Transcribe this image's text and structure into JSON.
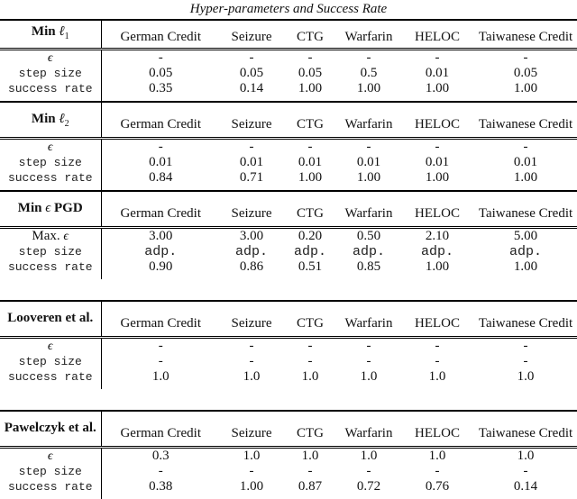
{
  "title": "Hyper-parameters and Success Rate",
  "columns": [
    "German Credit",
    "Seizure",
    "CTG",
    "Warfarin",
    "HELOC",
    "Taiwanese Credit"
  ],
  "sections": [
    {
      "name_prefix": "Min ",
      "name_math": "ℓ",
      "name_sub": "1",
      "name_suffix": "",
      "rows": [
        {
          "label_prefix": "",
          "label_math": "ϵ",
          "label_mono": "",
          "values": [
            "-",
            "-",
            "-",
            "-",
            "-",
            "-"
          ]
        },
        {
          "label_prefix": "",
          "label_math": "",
          "label_mono": "step size",
          "values": [
            "0.05",
            "0.05",
            "0.05",
            "0.5",
            "0.01",
            "0.05"
          ]
        },
        {
          "label_prefix": "",
          "label_math": "",
          "label_mono": "success rate",
          "values": [
            "0.35",
            "0.14",
            "1.00",
            "1.00",
            "1.00",
            "1.00"
          ]
        }
      ]
    },
    {
      "name_prefix": "Min ",
      "name_math": "ℓ",
      "name_sub": "2",
      "name_suffix": "",
      "rows": [
        {
          "label_prefix": "",
          "label_math": "ϵ",
          "label_mono": "",
          "values": [
            "-",
            "-",
            "-",
            "-",
            "-",
            "-"
          ]
        },
        {
          "label_prefix": "",
          "label_math": "",
          "label_mono": "step size",
          "values": [
            "0.01",
            "0.01",
            "0.01",
            "0.01",
            "0.01",
            "0.01"
          ]
        },
        {
          "label_prefix": "",
          "label_math": "",
          "label_mono": "success rate",
          "values": [
            "0.84",
            "0.71",
            "1.00",
            "1.00",
            "1.00",
            "1.00"
          ]
        }
      ]
    },
    {
      "name_prefix": "Min ",
      "name_math": "ϵ",
      "name_sub": "",
      "name_suffix": " PGD",
      "rows": [
        {
          "label_prefix": "Max. ",
          "label_math": "ϵ",
          "label_mono": "",
          "values": [
            "3.00",
            "3.00",
            "0.20",
            "0.50",
            "2.10",
            "5.00"
          ]
        },
        {
          "label_prefix": "",
          "label_math": "",
          "label_mono": "step size",
          "values": [
            "adp.",
            "adp.",
            "adp.",
            "adp.",
            "adp.",
            "adp."
          ]
        },
        {
          "label_prefix": "",
          "label_math": "",
          "label_mono": "success rate",
          "values": [
            "0.90",
            "0.86",
            "0.51",
            "0.85",
            "1.00",
            "1.00"
          ]
        }
      ]
    },
    {
      "name_prefix": "Looveren et al.",
      "name_math": "",
      "name_sub": "",
      "name_suffix": "",
      "rows": [
        {
          "label_prefix": "",
          "label_math": "ϵ",
          "label_mono": "",
          "values": [
            "-",
            "-",
            "-",
            "-",
            "-",
            "-"
          ]
        },
        {
          "label_prefix": "",
          "label_math": "",
          "label_mono": "step size",
          "values": [
            "-",
            "-",
            "-",
            "-",
            "-",
            "-"
          ]
        },
        {
          "label_prefix": "",
          "label_math": "",
          "label_mono": "success rate",
          "values": [
            "1.0",
            "1.0",
            "1.0",
            "1.0",
            "1.0",
            "1.0"
          ]
        }
      ]
    },
    {
      "name_prefix": "Pawelczyk et al.",
      "name_math": "",
      "name_sub": "",
      "name_suffix": "",
      "rows": [
        {
          "label_prefix": "",
          "label_math": "ϵ",
          "label_mono": "",
          "values": [
            "0.3",
            "1.0",
            "1.0",
            "1.0",
            "1.0",
            "1.0"
          ]
        },
        {
          "label_prefix": "",
          "label_math": "",
          "label_mono": "step size",
          "values": [
            "-",
            "-",
            "-",
            "-",
            "-",
            "-"
          ]
        },
        {
          "label_prefix": "",
          "label_math": "",
          "label_mono": "success rate",
          "values": [
            "0.38",
            "1.00",
            "0.87",
            "0.72",
            "0.76",
            "0.14"
          ]
        }
      ]
    }
  ]
}
